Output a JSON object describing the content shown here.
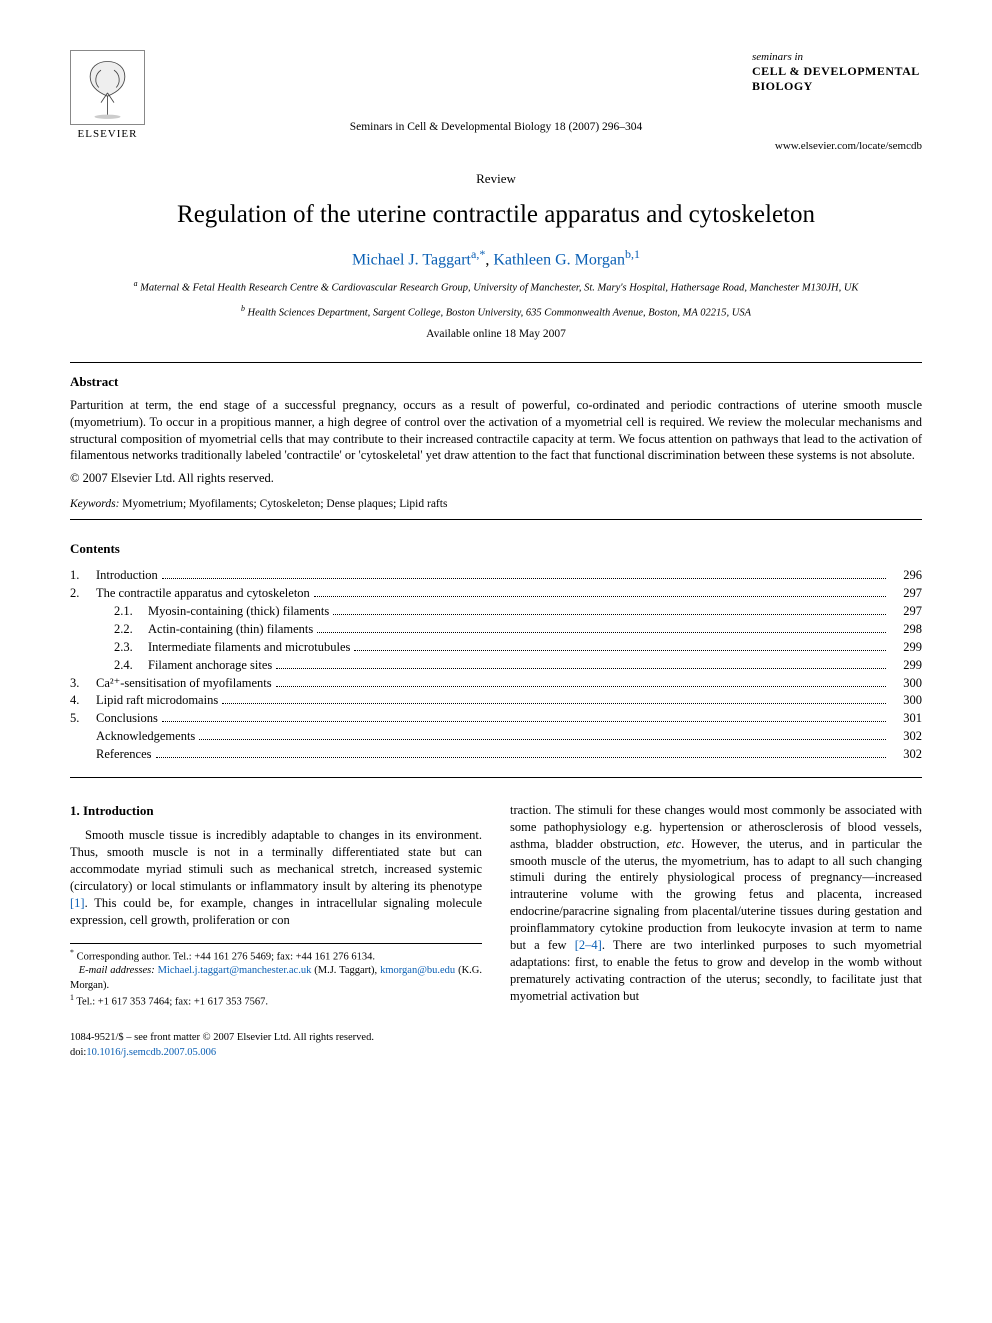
{
  "publisher": {
    "name": "ELSEVIER"
  },
  "journal_logo": {
    "seminars": "seminars in",
    "line1": "CELL & DEVELOPMENTAL",
    "line2": "BIOLOGY"
  },
  "header": {
    "journal_ref": "Seminars in Cell & Developmental Biology 18 (2007) 296–304",
    "site": "www.elsevier.com/locate/semcdb",
    "type": "Review"
  },
  "title": "Regulation of the uterine contractile apparatus and cytoskeleton",
  "authors": {
    "a1": {
      "name": "Michael J. Taggart",
      "sup": "a,",
      "star": "*"
    },
    "a2": {
      "name": "Kathleen G. Morgan",
      "sup": "b,1"
    },
    "sep": ", "
  },
  "affiliations": {
    "a": "Maternal & Fetal Health Research Centre & Cardiovascular Research Group, University of Manchester, St. Mary's Hospital, Hathersage Road, Manchester M130JH, UK",
    "b": "Health Sciences Department, Sargent College, Boston University, 635 Commonwealth Avenue, Boston, MA 02215, USA"
  },
  "available": "Available online 18 May 2007",
  "abstract": {
    "heading": "Abstract",
    "body": "Parturition at term, the end stage of a successful pregnancy, occurs as a result of powerful, co-ordinated and periodic contractions of uterine smooth muscle (myometrium). To occur in a propitious manner, a high degree of control over the activation of a myometrial cell is required. We review the molecular mechanisms and structural composition of myometrial cells that may contribute to their increased contractile capacity at term. We focus attention on pathways that lead to the activation of filamentous networks traditionally labeled 'contractile' or 'cytoskeletal' yet draw attention to the fact that functional discrimination between these systems is not absolute.",
    "copyright": "© 2007 Elsevier Ltd. All rights reserved."
  },
  "keywords": {
    "label": "Keywords:",
    "text": " Myometrium; Myofilaments; Cytoskeleton; Dense plaques; Lipid rafts"
  },
  "contents": {
    "heading": "Contents",
    "items": [
      {
        "num": "1.",
        "label": "Introduction",
        "page": "296"
      },
      {
        "num": "2.",
        "label": "The contractile apparatus and cytoskeleton",
        "page": "297"
      },
      {
        "num": "",
        "sub": "2.1.",
        "label": "Myosin-containing (thick) filaments",
        "page": "297"
      },
      {
        "num": "",
        "sub": "2.2.",
        "label": "Actin-containing (thin) filaments",
        "page": "298"
      },
      {
        "num": "",
        "sub": "2.3.",
        "label": "Intermediate filaments and microtubules",
        "page": "299"
      },
      {
        "num": "",
        "sub": "2.4.",
        "label": "Filament anchorage sites",
        "page": "299"
      },
      {
        "num": "3.",
        "label": "Ca²⁺-sensitisation of myofilaments",
        "page": "300"
      },
      {
        "num": "4.",
        "label": "Lipid raft microdomains",
        "page": "300"
      },
      {
        "num": "5.",
        "label": "Conclusions",
        "page": "301"
      },
      {
        "num": "",
        "label": "Acknowledgements",
        "page": "302"
      },
      {
        "num": "",
        "label": "References",
        "page": "302"
      }
    ]
  },
  "section1": {
    "heading": "1. Introduction",
    "p1a": "Smooth muscle tissue is incredibly adaptable to changes in its environment. Thus, smooth muscle is not in a terminally differentiated state but can accommodate myriad stimuli such as mechanical stretch, increased systemic (circulatory) or local stimulants or inflammatory insult by altering its phenotype ",
    "ref1": "[1]",
    "p1b": ". This could be, for example, changes in intracellular signaling molecule expression, cell growth, proliferation or con",
    "p2a": "traction. The stimuli for these changes would most commonly be associated with some pathophysiology e.g. hypertension or atherosclerosis of blood vessels, asthma, bladder obstruction, ",
    "etc": "etc",
    "p2b": ". However, the uterus, and in particular the smooth muscle of the uterus, the myometrium, has to adapt to all such changing stimuli during the entirely physiological process of pregnancy—increased intrauterine volume with the growing fetus and placenta, increased endocrine/paracrine signaling from placental/uterine tissues during gestation and proinflammatory cytokine production from leukocyte invasion at term to name but a few ",
    "ref2": "[2–4]",
    "p2c": ". There are two interlinked purposes to such myometrial adaptations: first, to enable the fetus to grow and develop in the womb without prematurely activating contraction of the uterus; secondly, to facilitate just that myometrial activation but"
  },
  "footnotes": {
    "corr_label": "Corresponding author. Tel.: +44 161 276 5469; fax: +44 161 276 6134.",
    "email_label": "E-mail addresses:",
    "email1": "Michael.j.taggart@manchester.ac.uk",
    "email1_who": " (M.J. Taggart),",
    "email2": "kmorgan@bu.edu",
    "email2_who": " (K.G. Morgan).",
    "note1": "Tel.: +1 617 353 7464; fax: +1 617 353 7567."
  },
  "footer": {
    "issn": "1084-9521/$ – see front matter © 2007 Elsevier Ltd. All rights reserved.",
    "doi_label": "doi:",
    "doi": "10.1016/j.semcdb.2007.05.006"
  },
  "colors": {
    "link": "#0a5fb4",
    "text": "#000000",
    "bg": "#ffffff"
  }
}
